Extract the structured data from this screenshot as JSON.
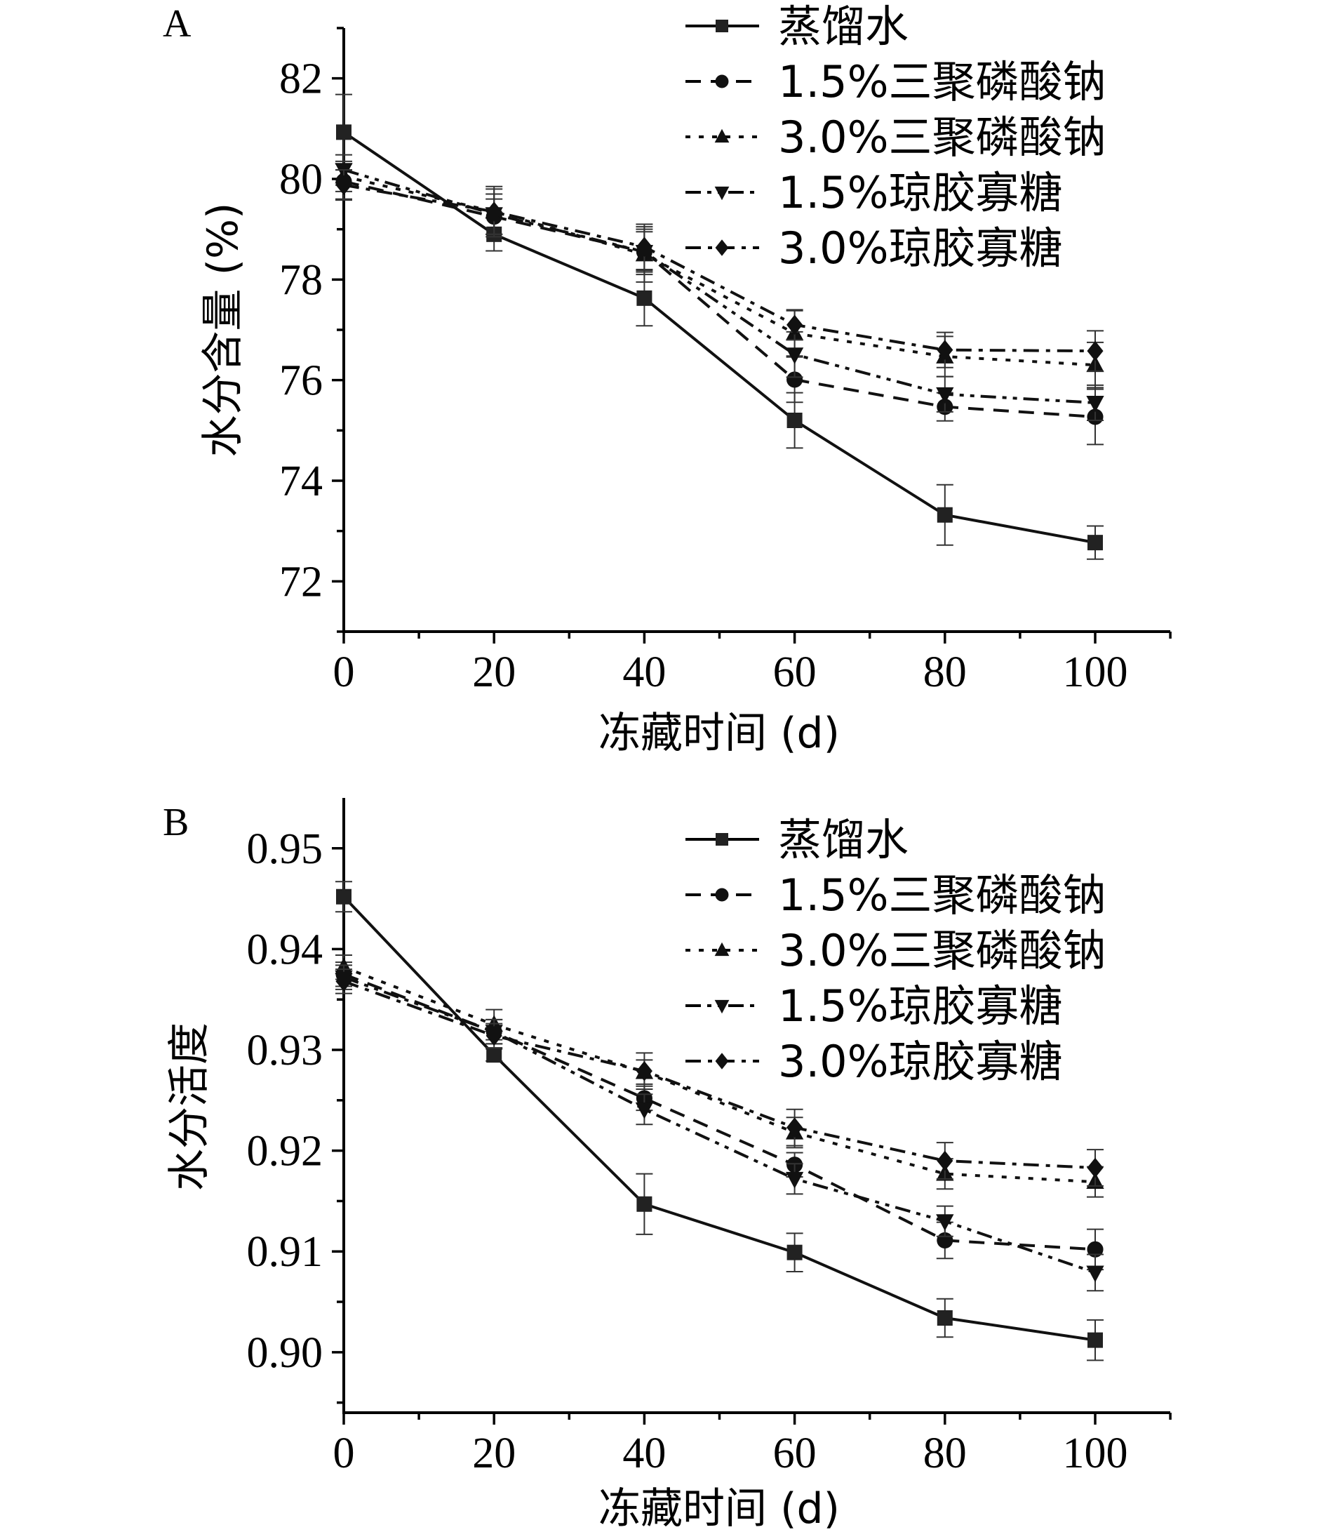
{
  "chart_data": [
    {
      "type": "line",
      "panel": "A",
      "title": "",
      "xlabel": "冻藏时间 (d)",
      "ylabel": "水分含量 (%)",
      "xlim": [
        0,
        110
      ],
      "ylim": [
        71,
        83
      ],
      "x_ticks": [
        0,
        20,
        40,
        60,
        80,
        100
      ],
      "x_tick_labels": [
        "0",
        "20",
        "40",
        "60",
        "80",
        "100"
      ],
      "y_ticks": [
        72,
        74,
        76,
        78,
        80,
        82
      ],
      "y_tick_labels": [
        "72",
        "74",
        "76",
        "78",
        "80",
        "82"
      ],
      "grid": false,
      "legend_position": "top-right",
      "x": [
        0,
        20,
        40,
        60,
        80,
        100
      ],
      "series": [
        {
          "name": "蒸馏水",
          "marker": "square",
          "line_style": "solid",
          "values": [
            80.93,
            78.9,
            77.63,
            75.2,
            73.32,
            72.77
          ],
          "errors": [
            0.75,
            0.33,
            0.55,
            0.55,
            0.6,
            0.33
          ]
        },
        {
          "name": "1.5%三聚磷酸钠",
          "marker": "circle",
          "line_style": "dash",
          "values": [
            79.95,
            79.25,
            78.55,
            76.01,
            75.47,
            75.27
          ],
          "errors": [
            0.35,
            0.35,
            0.45,
            0.45,
            0.28,
            0.55
          ]
        },
        {
          "name": "3.0%三聚磷酸钠",
          "marker": "triangle-up",
          "line_style": "dot",
          "values": [
            80.05,
            79.35,
            78.5,
            76.93,
            76.47,
            76.3
          ],
          "errors": [
            0.3,
            0.5,
            0.55,
            0.45,
            0.4,
            0.45
          ]
        },
        {
          "name": "1.5%琼胶寡糖",
          "marker": "triangle-down",
          "line_style": "dash-dot-dot",
          "values": [
            80.18,
            79.3,
            78.55,
            76.51,
            75.72,
            75.55
          ],
          "errors": [
            0.3,
            0.4,
            0.4,
            0.45,
            0.35,
            0.35
          ]
        },
        {
          "name": "3.0%琼胶寡糖",
          "marker": "diamond",
          "line_style": "dash-dot",
          "values": [
            79.88,
            79.35,
            78.65,
            77.1,
            76.6,
            76.58
          ],
          "errors": [
            0.3,
            0.45,
            0.45,
            0.3,
            0.35,
            0.4
          ]
        }
      ]
    },
    {
      "type": "line",
      "panel": "B",
      "title": "",
      "xlabel": "冻藏时间 (d)",
      "ylabel": "水分活度",
      "xlim": [
        0,
        110
      ],
      "ylim": [
        0.894,
        0.955
      ],
      "x_ticks": [
        0,
        20,
        40,
        60,
        80,
        100
      ],
      "x_tick_labels": [
        "0",
        "20",
        "40",
        "60",
        "80",
        "100"
      ],
      "y_ticks": [
        0.9,
        0.91,
        0.92,
        0.93,
        0.94,
        0.95
      ],
      "y_tick_labels": [
        "0.90",
        "0.91",
        "0.92",
        "0.93",
        "0.94",
        "0.95"
      ],
      "grid": false,
      "legend_position": "top-right",
      "x": [
        0,
        20,
        40,
        60,
        80,
        100
      ],
      "series": [
        {
          "name": "蒸馏水",
          "marker": "square",
          "line_style": "solid",
          "values": [
            0.9452,
            0.9295,
            0.9147,
            0.9099,
            0.9034,
            0.9012
          ],
          "errors": [
            0.0015,
            0.0006,
            0.003,
            0.0019,
            0.0019,
            0.002
          ]
        },
        {
          "name": "1.5%三聚磷酸钠",
          "marker": "circle",
          "line_style": "dash",
          "values": [
            0.9375,
            0.9318,
            0.9252,
            0.9186,
            0.9111,
            0.9102
          ],
          "errors": [
            0.0012,
            0.0012,
            0.0012,
            0.0012,
            0.0018,
            0.002
          ]
        },
        {
          "name": "3.0%三聚磷酸钠",
          "marker": "triangle-up",
          "line_style": "dot",
          "values": [
            0.9382,
            0.9325,
            0.9278,
            0.9218,
            0.9177,
            0.9169
          ],
          "errors": [
            0.0012,
            0.0015,
            0.0012,
            0.0015,
            0.0015,
            0.0015
          ]
        },
        {
          "name": "1.5%琼胶寡糖",
          "marker": "triangle-down",
          "line_style": "dash-dot-dot",
          "values": [
            0.9372,
            0.9318,
            0.9241,
            0.9172,
            0.913,
            0.9079
          ],
          "errors": [
            0.0012,
            0.0012,
            0.0015,
            0.0015,
            0.0015,
            0.0018
          ]
        },
        {
          "name": "3.0%琼胶寡糖",
          "marker": "diamond",
          "line_style": "dash-dot",
          "values": [
            0.9368,
            0.9314,
            0.9279,
            0.9223,
            0.919,
            0.9183
          ],
          "errors": [
            0.0012,
            0.0012,
            0.0018,
            0.0018,
            0.0018,
            0.0018
          ]
        }
      ]
    }
  ],
  "panels": {
    "A": {
      "letter": "A"
    },
    "B": {
      "letter": "B"
    }
  },
  "colors": {
    "ink": "#000000",
    "series_stroke": "#111111",
    "square_fill": "#222222",
    "error_bar": "#333333",
    "background": "#ffffff"
  }
}
